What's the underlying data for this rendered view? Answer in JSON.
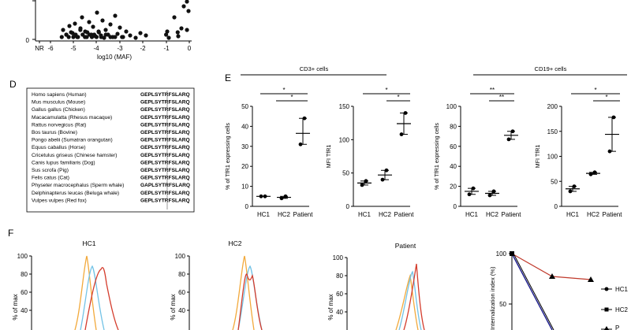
{
  "panel_labels": {
    "d": "D",
    "e": "E",
    "f": "F"
  },
  "panel_top": {
    "xlabel": "log10 (MAF)",
    "y_ticks": [
      "0"
    ],
    "x_ticks": [
      "NR",
      "-6",
      "-5",
      "-4",
      "-3",
      "-2",
      "-1",
      "0"
    ]
  },
  "alignment": {
    "species": [
      "Homo sapiens (Human)",
      "Mus musculus (Mouse)",
      "Gallus gallus (Chicken)",
      "Macacamulatta (Rhesus macaque)",
      "Rattus norvegicus (Rat)",
      "Bos taurus (Bovine)",
      "Pongo abelii (Sumatran orangutan)",
      "Equus caballus (Horse)",
      "Cricetulus griseus (Chinese hamster)",
      "Canis lupus familiaris (Dog)",
      "Sus scrofa (Pig)",
      "Felis catus (Cat)",
      "Physeter macrocephalus (Sperm whale)",
      "Delphinapterus leucas (Beluga whale)",
      "Vulpes vulpes (Red fox)"
    ],
    "sequences": [
      "GEPLSYTRFSLARQ",
      "GEPLSYTRFSLARQ",
      "GEPLSYTRFSLARQ",
      "GEPLSYTRFSLARQ",
      "GEPLSYTRFSLARQ",
      "GEPLSYTRFSLARQ",
      "GEPLSYTRFSLARQ",
      "GEPLSYTRFSLARQ",
      "GEPLSYTRFSLARQ",
      "GEPLSYTRFSLARQ",
      "GEPLSYTRFSLARQ",
      "GEPLSYTRFSLARQ",
      "GAPLSYTRFSLARQ",
      "GEPLSYTRFSLARQ",
      "GEPLSYTRFSLARQ"
    ]
  },
  "panel_e": {
    "group_cd3": "CD3+ cells",
    "group_cd19": "CD19+ cells",
    "categories": [
      "HC1",
      "HC2",
      "Patient"
    ],
    "sig": [
      "*",
      "*",
      "*",
      "*",
      "**",
      "**",
      "*",
      "*"
    ]
  },
  "panel_f": {
    "titles": [
      "HC1",
      "HC2",
      "Patient"
    ],
    "ylabel": "% of max",
    "yticks": [
      "100",
      "80",
      "60",
      "40"
    ],
    "internalization_ylabel": "Internalization index (%)",
    "internalization_yticks": [
      "100",
      "50"
    ],
    "legend": [
      "HC1",
      "HC2",
      "P"
    ]
  },
  "colors": {
    "red": "#d43c2c",
    "blue": "#1a1a8c",
    "orange": "#f2a93b",
    "cyan": "#74c3e6",
    "darkred": "#c0392b"
  },
  "chart_data": [
    {
      "type": "scatter",
      "title": "",
      "xlabel": "log10 (MAF)",
      "ylabel": "",
      "xlim": [
        -6.5,
        0
      ],
      "series": [
        {
          "name": "variants",
          "x": [
            -5.5,
            -5.3,
            -5.2,
            -5.1,
            -5.0,
            -4.9,
            -4.8,
            -4.7,
            -4.6,
            -4.5,
            -4.4,
            -4.3,
            -4.2,
            -4.1,
            -4.0,
            -3.9,
            -3.8,
            -3.6,
            -3.4,
            -3.2,
            -2.9,
            -1.0,
            -0.5,
            -0.1
          ],
          "y": [
            1,
            2,
            1,
            3,
            1,
            2,
            1,
            4,
            2,
            1,
            3,
            2,
            1,
            2,
            1,
            3,
            1,
            2,
            1,
            1,
            1,
            2,
            3,
            4
          ]
        }
      ]
    },
    {
      "type": "scatter",
      "title": "CD3+ cells",
      "ylabel": "% of TfR1 expressing cells",
      "categories": [
        "HC1",
        "HC2",
        "Patient"
      ],
      "ylim": [
        0,
        50
      ],
      "series": [
        {
          "name": "mean",
          "values": [
            5,
            4.5,
            36.5
          ]
        },
        {
          "name": "points",
          "values": [
            [
              5,
              5
            ],
            [
              4,
              5
            ],
            [
              31,
              44
            ]
          ]
        }
      ]
    },
    {
      "type": "scatter",
      "title": "CD3+ cells",
      "ylabel": "MFI TfR1",
      "categories": [
        "HC1",
        "HC2",
        "Patient"
      ],
      "ylim": [
        0,
        150
      ],
      "series": [
        {
          "name": "mean",
          "values": [
            35,
            47,
            124
          ]
        },
        {
          "name": "points",
          "values": [
            [
              32,
              38
            ],
            [
              40,
              54
            ],
            [
              108,
              140
            ]
          ]
        }
      ]
    },
    {
      "type": "scatter",
      "title": "CD19+ cells",
      "ylabel": "% of TfR1 expressing cells",
      "categories": [
        "HC1",
        "HC2",
        "Patient"
      ],
      "ylim": [
        0,
        100
      ],
      "series": [
        {
          "name": "mean",
          "values": [
            15,
            13,
            71
          ]
        },
        {
          "name": "points",
          "values": [
            [
              12,
              18
            ],
            [
              11,
              15
            ],
            [
              67,
              75
            ]
          ]
        }
      ]
    },
    {
      "type": "scatter",
      "title": "CD19+ cells",
      "ylabel": "MFI TfR1",
      "categories": [
        "HC1",
        "HC2",
        "Patient"
      ],
      "ylim": [
        0,
        200
      ],
      "series": [
        {
          "name": "mean",
          "values": [
            35,
            66,
            144
          ]
        },
        {
          "name": "points",
          "values": [
            [
              30,
              40
            ],
            [
              64,
              68
            ],
            [
              110,
              178
            ]
          ]
        }
      ]
    },
    {
      "type": "line",
      "title": "",
      "ylabel": "Internalization index (%)",
      "ylim": [
        0,
        100
      ],
      "series": [
        {
          "name": "P",
          "x": [
            0,
            1,
            2
          ],
          "values": [
            100,
            78,
            76
          ]
        },
        {
          "name": "HC1",
          "x": [
            0,
            1
          ],
          "values": [
            100,
            0
          ]
        },
        {
          "name": "HC2",
          "x": [
            0,
            1
          ],
          "values": [
            100,
            0
          ]
        }
      ]
    }
  ]
}
